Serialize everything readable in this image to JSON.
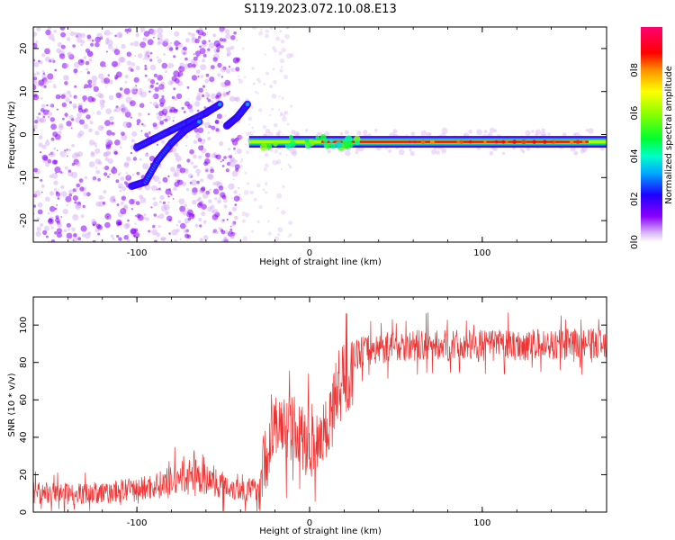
{
  "title": "S119.2023.072.10.08.E13",
  "chart_data": [
    {
      "type": "heatmap",
      "xlabel": "Height of straight line (km)",
      "ylabel": "Frequency (Hz)",
      "xlim": [
        -160,
        172
      ],
      "ylim": [
        -25,
        25
      ],
      "xticks": [
        -100,
        0,
        100
      ],
      "xtick_labels": [
        "-100",
        "0",
        "100"
      ],
      "yticks": [
        -20,
        -10,
        0,
        10,
        20
      ],
      "ytick_labels": [
        "-20",
        "-10",
        "0",
        "10",
        "20"
      ],
      "colorbar": {
        "label": "Normalized spectral amplitude",
        "range": [
          0,
          1
        ],
        "ticks": [
          "0.0",
          "0.2",
          "0.4",
          "0.6",
          "0.8"
        ],
        "tick_values": [
          0.0,
          0.2,
          0.4,
          0.6,
          0.8
        ],
        "colormap": "hsv-rainbow (white to purple, blue, cyan, green, yellow, red, pink)"
      },
      "features": [
        {
          "name": "noise",
          "x_range": [
            -160,
            -40
          ],
          "y_range": [
            -25,
            25
          ],
          "amplitude": 0.12
        },
        {
          "name": "rising-trace-a",
          "points": [
            [
              -100,
              -3
            ],
            [
              -90,
              -1
            ],
            [
              -80,
              1
            ],
            [
              -70,
              3
            ],
            [
              -60,
              5
            ],
            [
              -52,
              7
            ]
          ],
          "amplitude": 0.25
        },
        {
          "name": "rising-trace-b",
          "points": [
            [
              -103,
              -12
            ],
            [
              -95,
              -11
            ],
            [
              -88,
              -6
            ],
            [
              -80,
              -2
            ],
            [
              -72,
              1
            ],
            [
              -64,
              3
            ]
          ],
          "amplitude": 0.25
        },
        {
          "name": "rising-trace-c",
          "points": [
            [
              -48,
              2
            ],
            [
              -42,
              4
            ],
            [
              -36,
              7
            ]
          ],
          "amplitude": 0.3
        },
        {
          "name": "steady-trace",
          "x_range": [
            -35,
            172
          ],
          "frequency_hz": -1.7,
          "amplitude": 0.9
        }
      ]
    },
    {
      "type": "line",
      "xlabel": "Height of straight line (km)",
      "ylabel": "SNR (10 * v/v)",
      "xlim": [
        -160,
        172
      ],
      "ylim": [
        0,
        115
      ],
      "xticks": [
        -100,
        0,
        100
      ],
      "xtick_labels": [
        "-100",
        "0",
        "100"
      ],
      "yticks": [
        0,
        20,
        40,
        60,
        80,
        100
      ],
      "ytick_labels": [
        "0",
        "20",
        "40",
        "60",
        "80",
        "100"
      ],
      "line_color": "#ee3333",
      "trend": [
        {
          "x": -160,
          "y": 10
        },
        {
          "x": -120,
          "y": 10
        },
        {
          "x": -100,
          "y": 12
        },
        {
          "x": -85,
          "y": 15
        },
        {
          "x": -70,
          "y": 20
        },
        {
          "x": -55,
          "y": 16
        },
        {
          "x": -40,
          "y": 12
        },
        {
          "x": -30,
          "y": 12
        },
        {
          "x": -25,
          "y": 30
        },
        {
          "x": -20,
          "y": 45
        },
        {
          "x": -10,
          "y": 45
        },
        {
          "x": 0,
          "y": 35
        },
        {
          "x": 10,
          "y": 45
        },
        {
          "x": 15,
          "y": 62
        },
        {
          "x": 20,
          "y": 78
        },
        {
          "x": 30,
          "y": 86
        },
        {
          "x": 50,
          "y": 89
        },
        {
          "x": 100,
          "y": 89
        },
        {
          "x": 172,
          "y": 90
        }
      ]
    }
  ]
}
